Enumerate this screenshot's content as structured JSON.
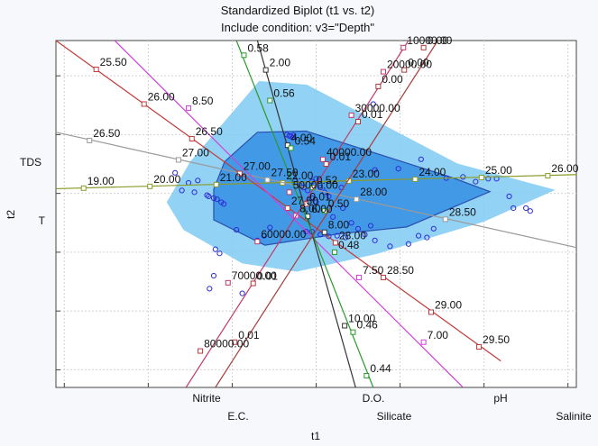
{
  "chart_data": {
    "type": "scatter",
    "title": "Standardized Biplot (t1 vs. t2)",
    "subtitle": "Include condition: v3=\"Depth\"",
    "xlabel": "t1",
    "ylabel": "t2",
    "xlim": [
      -3.1,
      3.1
    ],
    "ylim": [
      -3.3,
      2.6
    ],
    "grid": true,
    "colors": {
      "outer_hull": "#7fcaf2",
      "inner_hull": "#3a93e6",
      "points": "#2c2cd8",
      "T": "#8a9a28",
      "TDS": "#9a9a9a",
      "Nitrite": "#c23a3a",
      "E.C.": "#d040d8",
      "D.O.": "#333333",
      "Silicate": "#2a9a2a",
      "pH": "#c23a6a",
      "Salinite": "#a83a3a"
    },
    "outer_hull": [
      [
        -0.68,
        1.91
      ],
      [
        -0.11,
        1.85
      ],
      [
        1.68,
        0.51
      ],
      [
        2.85,
        0.06
      ],
      [
        2.0,
        -0.48
      ],
      [
        0.72,
        -1.03
      ],
      [
        -0.23,
        -1.33
      ],
      [
        -0.88,
        -1.19
      ],
      [
        -1.58,
        -0.62
      ],
      [
        -1.78,
        -0.15
      ],
      [
        -1.5,
        0.54
      ]
    ],
    "inner_hull": [
      [
        -0.7,
        1.04
      ],
      [
        -0.12,
        1.06
      ],
      [
        1.62,
        0.27
      ],
      [
        2.07,
        0.03
      ],
      [
        1.08,
        -0.57
      ],
      [
        0.26,
        -0.69
      ],
      [
        -0.61,
        -0.88
      ],
      [
        -1.22,
        -0.45
      ],
      [
        -1.22,
        0.07
      ],
      [
        -1.09,
        0.54
      ]
    ],
    "points": [
      [
        -1.68,
        0.35
      ],
      [
        -1.52,
        0.18
      ],
      [
        -1.6,
        0.05
      ],
      [
        -1.45,
        0.02
      ],
      [
        -1.41,
        0.22
      ],
      [
        -1.3,
        -0.03
      ],
      [
        -1.28,
        -0.05
      ],
      [
        -1.22,
        -0.08
      ],
      [
        -1.18,
        -0.1
      ],
      [
        -1.13,
        -0.15
      ],
      [
        -1.1,
        -0.18
      ],
      [
        -0.95,
        -0.62
      ],
      [
        -0.7,
        -0.8
      ],
      [
        -0.62,
        -0.72
      ],
      [
        -0.55,
        -0.58
      ],
      [
        -1.2,
        -0.95
      ],
      [
        -1.15,
        -1.02
      ],
      [
        -1.22,
        -1.4
      ],
      [
        -1.27,
        -1.62
      ],
      [
        -0.88,
        -1.7
      ],
      [
        -0.35,
        1.0
      ],
      [
        -0.32,
        0.98
      ],
      [
        -0.3,
        0.97
      ],
      [
        -0.27,
        0.99
      ],
      [
        -0.28,
        0.95
      ],
      [
        -0.25,
        0.22
      ],
      [
        -0.2,
        0.15
      ],
      [
        -0.15,
        0.1
      ],
      [
        -0.1,
        0.05
      ],
      [
        -0.05,
        0.2
      ],
      [
        0.0,
        0.25
      ],
      [
        0.05,
        0.1
      ],
      [
        0.1,
        0.02
      ],
      [
        0.15,
        -0.05
      ],
      [
        0.3,
        0.1
      ],
      [
        -0.05,
        -0.08
      ],
      [
        0.0,
        -0.15
      ],
      [
        0.1,
        -0.3
      ],
      [
        0.2,
        -0.4
      ],
      [
        0.32,
        -0.25
      ],
      [
        0.42,
        -0.5
      ],
      [
        0.5,
        -0.6
      ],
      [
        0.58,
        -0.7
      ],
      [
        0.65,
        -0.55
      ],
      [
        0.7,
        -0.8
      ],
      [
        0.35,
        -0.75
      ],
      [
        0.25,
        -0.72
      ],
      [
        0.15,
        -0.73
      ],
      [
        0.05,
        -0.7
      ],
      [
        -0.05,
        -0.65
      ],
      [
        -0.12,
        -0.65
      ],
      [
        0.88,
        -0.9
      ],
      [
        1.1,
        -0.86
      ],
      [
        1.22,
        -0.72
      ],
      [
        1.32,
        -0.75
      ],
      [
        1.4,
        -0.6
      ],
      [
        1.55,
        0.26
      ],
      [
        1.75,
        0.28
      ],
      [
        1.9,
        0.2
      ],
      [
        2.05,
        0.25
      ],
      [
        2.15,
        0.25
      ],
      [
        2.3,
        -0.05
      ],
      [
        2.35,
        -0.25
      ],
      [
        2.5,
        -0.25
      ],
      [
        2.55,
        -0.3
      ],
      [
        0.68,
        1.52
      ],
      [
        1.25,
        0.58
      ],
      [
        0.98,
        0.42
      ],
      [
        0.7,
        0.4
      ]
    ],
    "variables": [
      {
        "name": "T",
        "line": [
          [
            -3.1,
            0.08
          ],
          [
            3.1,
            0.32
          ]
        ],
        "ticks": [
          {
            "label": "19.00",
            "p": [
              -2.77,
              0.09
            ]
          },
          {
            "label": "20.00",
            "p": [
              -1.98,
              0.12
            ]
          },
          {
            "label": "21.00",
            "p": [
              -1.19,
              0.15
            ]
          },
          {
            "label": "22.00",
            "p": [
              -0.4,
              0.18
            ]
          },
          {
            "label": "23.00",
            "p": [
              0.39,
              0.21
            ]
          },
          {
            "label": "24.00",
            "p": [
              1.18,
              0.24
            ]
          },
          {
            "label": "25.00",
            "p": [
              1.97,
              0.27
            ]
          },
          {
            "label": "26.00",
            "p": [
              2.76,
              0.3
            ]
          }
        ]
      },
      {
        "name": "TDS",
        "line": [
          [
            -3.1,
            1.04
          ],
          [
            3.1,
            -0.92
          ]
        ],
        "ticks": [
          {
            "label": "26.50",
            "p": [
              -2.7,
              0.9
            ]
          },
          {
            "label": "27.00",
            "p": [
              -1.64,
              0.57
            ]
          },
          {
            "label": "27.50",
            "p": [
              -0.58,
              0.23
            ]
          },
          {
            "label": "28.00",
            "p": [
              0.48,
              -0.1
            ]
          },
          {
            "label": "28.50",
            "p": [
              1.54,
              -0.44
            ]
          }
        ]
      },
      {
        "name": "Nitrite",
        "line": [
          [
            -3.1,
            2.6
          ],
          [
            2.2,
            -2.85
          ]
        ],
        "ticks": [
          {
            "label": "25.50",
            "p": [
              -2.62,
              2.11
            ]
          },
          {
            "label": "26.00",
            "p": [
              -2.05,
              1.52
            ]
          },
          {
            "label": "26.50",
            "p": [
              -1.48,
              0.93
            ]
          },
          {
            "label": "27.00",
            "p": [
              -0.91,
              0.34
            ]
          },
          {
            "label": "27.50",
            "p": [
              -0.34,
              -0.25
            ]
          },
          {
            "label": "28.00",
            "p": [
              0.23,
              -0.84
            ]
          },
          {
            "label": "28.50",
            "p": [
              0.8,
              -1.43
            ]
          },
          {
            "label": "29.00",
            "p": [
              1.37,
              -2.02
            ]
          },
          {
            "label": "29.50",
            "p": [
              1.94,
              -2.61
            ]
          }
        ]
      },
      {
        "name": "E.C.",
        "line": [
          [
            -2.4,
            2.6
          ],
          [
            1.75,
            -3.3
          ]
        ],
        "ticks": [
          {
            "label": "8.50",
            "p": [
              -1.52,
              1.45
            ]
          },
          {
            "label": "8.00",
            "p": [
              -0.24,
              -0.38
            ]
          },
          {
            "label": "7.50",
            "p": [
              0.51,
              -1.43
            ]
          },
          {
            "label": "7.00",
            "p": [
              1.28,
              -2.53
            ]
          }
        ]
      },
      {
        "name": "D.O.",
        "line": [
          [
            -0.7,
            2.6
          ],
          [
            0.47,
            -3.3
          ]
        ],
        "ticks": [
          {
            "label": "2.00",
            "p": [
              -0.6,
              2.1
            ]
          },
          {
            "label": "4.00",
            "p": [
              -0.34,
              0.82
            ]
          },
          {
            "label": "6.00",
            "p": [
              -0.1,
              -0.39
            ]
          },
          {
            "label": "8.00",
            "p": [
              0.1,
              -0.66
            ]
          },
          {
            "label": "10.00",
            "p": [
              0.34,
              -2.25
            ]
          }
        ]
      },
      {
        "name": "Silicate",
        "line": [
          [
            -0.95,
            2.6
          ],
          [
            0.68,
            -3.3
          ]
        ],
        "ticks": [
          {
            "label": "0.58",
            "p": [
              -0.86,
              2.35
            ]
          },
          {
            "label": "0.56",
            "p": [
              -0.55,
              1.58
            ]
          },
          {
            "label": "0.54",
            "p": [
              -0.3,
              0.77
            ]
          },
          {
            "label": "0.52",
            "p": [
              -0.04,
              0.1
            ]
          },
          {
            "label": "0.50",
            "p": [
              0.1,
              -0.3
            ]
          },
          {
            "label": "0.48",
            "p": [
              0.22,
              -1.0
            ]
          },
          {
            "label": "0.46",
            "p": [
              0.44,
              -2.36
            ]
          },
          {
            "label": "0.44",
            "p": [
              0.6,
              -3.1
            ]
          }
        ]
      },
      {
        "name": "pH",
        "line": [
          [
            -1.55,
            -3.3
          ],
          [
            1.1,
            2.6
          ]
        ],
        "ticks": [
          {
            "label": "70000.00",
            "p": [
              -1.05,
              -1.52
            ]
          },
          {
            "label": "60000.00",
            "p": [
              -0.7,
              -0.82
            ]
          },
          {
            "label": "50000.00",
            "p": [
              -0.32,
              0.02
            ]
          },
          {
            "label": "40000.00",
            "p": [
              0.08,
              0.58
            ]
          },
          {
            "label": "30000.00",
            "p": [
              0.42,
              1.33
            ]
          },
          {
            "label": "20000.00",
            "p": [
              0.8,
              2.07
            ]
          },
          {
            "label": "10000.00",
            "p": [
              1.04,
              2.48
            ]
          }
        ]
      },
      {
        "name": "Salinite",
        "line": [
          [
            -1.2,
            -3.3
          ],
          [
            1.45,
            2.6
          ]
        ],
        "ticks": [
          {
            "label": "0.01",
            "p": [
              -0.97,
              -2.53
            ]
          },
          {
            "label": "0.01",
            "p": [
              -0.75,
              -1.53
            ]
          },
          {
            "label": "0.01",
            "p": [
              -0.12,
              -0.18
            ]
          },
          {
            "label": "0.01",
            "p": [
              0.12,
              0.5
            ]
          },
          {
            "label": "0.01",
            "p": [
              0.5,
              1.22
            ]
          },
          {
            "label": "0.00",
            "p": [
              0.74,
              1.82
            ]
          },
          {
            "label": "0.00",
            "p": [
              1.05,
              2.1
            ]
          },
          {
            "label": "0.00",
            "p": [
              1.28,
              2.48
            ]
          }
        ]
      },
      {
        "name": "80000.00",
        "line": null,
        "ticks": [
          {
            "label": "80000.00",
            "p": [
              -1.38,
              -2.68
            ]
          }
        ]
      }
    ]
  }
}
